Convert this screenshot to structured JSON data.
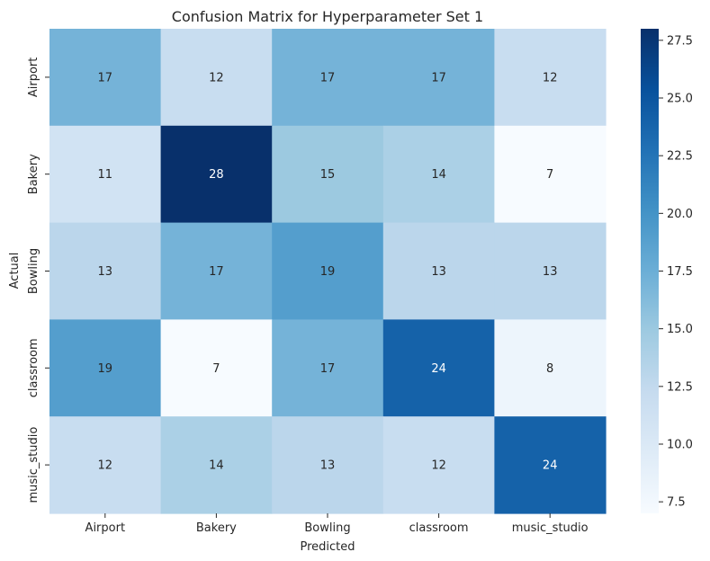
{
  "chart_data": {
    "type": "heatmap",
    "title": "Confusion Matrix for Hyperparameter Set 1",
    "xlabel": "Predicted",
    "ylabel": "Actual",
    "x_categories": [
      "Airport",
      "Bakery",
      "Bowling",
      "classroom",
      "music_studio"
    ],
    "y_categories": [
      "Airport",
      "Bakery",
      "Bowling",
      "classroom",
      "music_studio"
    ],
    "values": [
      [
        17,
        12,
        17,
        17,
        12
      ],
      [
        11,
        28,
        15,
        14,
        7
      ],
      [
        13,
        17,
        19,
        13,
        13
      ],
      [
        19,
        7,
        17,
        24,
        8
      ],
      [
        12,
        14,
        13,
        12,
        24
      ]
    ],
    "colormap": "Blues",
    "vmin": 7,
    "vmax": 28,
    "colorbar_ticks": [
      "7.5",
      "10.0",
      "12.5",
      "15.0",
      "17.5",
      "20.0",
      "22.5",
      "25.0",
      "27.5"
    ],
    "annotations": true
  }
}
